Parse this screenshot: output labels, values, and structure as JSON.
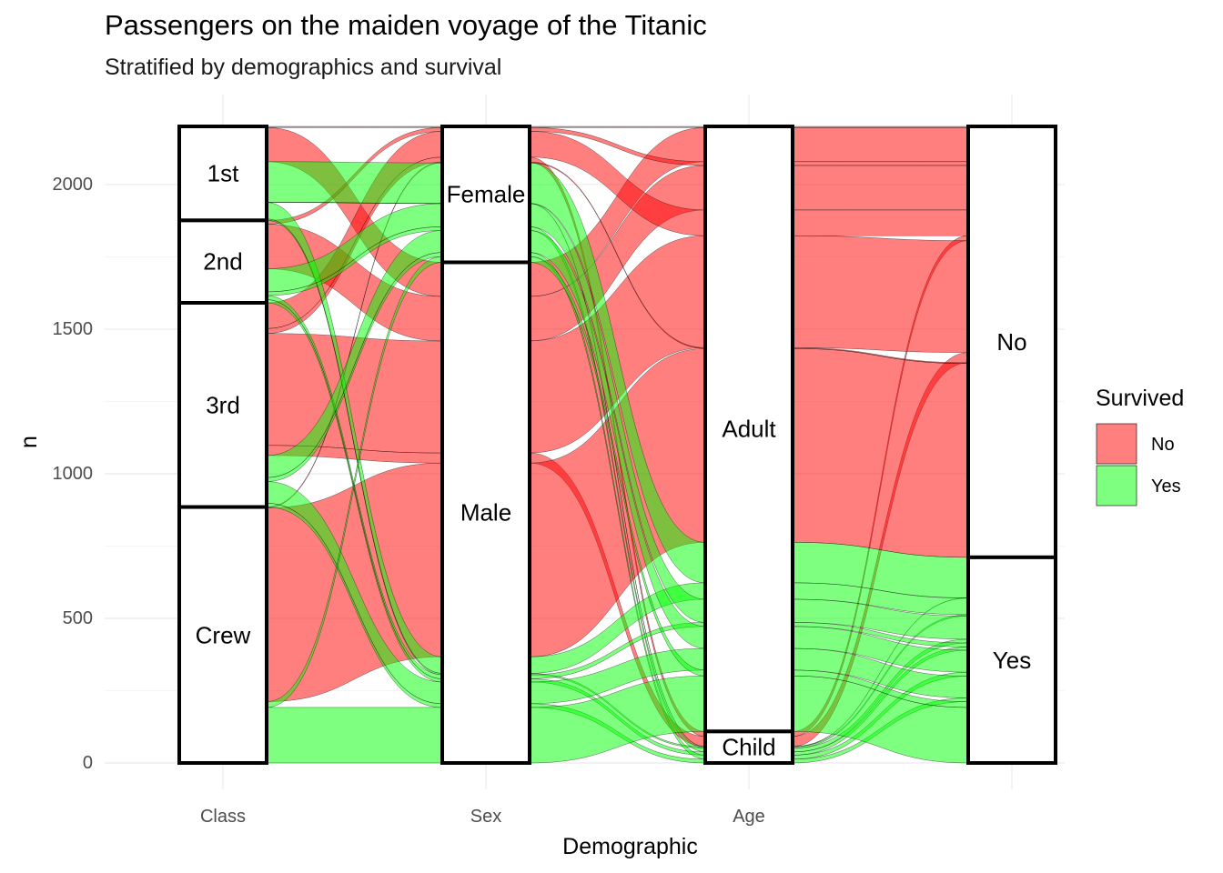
{
  "chart_data": {
    "type": "alluvial",
    "title": "Passengers on the maiden voyage of the Titanic",
    "subtitle": "Stratified by demographics and survival",
    "xlabel": "Demographic",
    "ylabel": "n",
    "ylim": [
      0,
      2201
    ],
    "y_ticks": [
      0,
      500,
      1000,
      1500,
      2000
    ],
    "x_tick_labels": [
      "Class",
      "Sex",
      "Age",
      ""
    ],
    "axes": [
      {
        "name": "Class",
        "strata": [
          {
            "label": "1st",
            "n": 325
          },
          {
            "label": "2nd",
            "n": 285
          },
          {
            "label": "3rd",
            "n": 706
          },
          {
            "label": "Crew",
            "n": 885
          }
        ]
      },
      {
        "name": "Sex",
        "strata": [
          {
            "label": "Female",
            "n": 470
          },
          {
            "label": "Male",
            "n": 1731
          }
        ]
      },
      {
        "name": "Age",
        "strata": [
          {
            "label": "Adult",
            "n": 2092
          },
          {
            "label": "Child",
            "n": 109
          }
        ]
      },
      {
        "name": "Survived",
        "strata": [
          {
            "label": "No",
            "n": 1490
          },
          {
            "label": "Yes",
            "n": 711
          }
        ]
      }
    ],
    "legend": {
      "title": "Survived",
      "position": "right",
      "items": [
        {
          "label": "No",
          "color": "#FF0000"
        },
        {
          "label": "Yes",
          "color": "#00FF00"
        }
      ]
    },
    "flows": [
      {
        "Class": "1st",
        "Sex": "Male",
        "Age": "Child",
        "Survived": "No",
        "n": 0
      },
      {
        "Class": "2nd",
        "Sex": "Male",
        "Age": "Child",
        "Survived": "No",
        "n": 0
      },
      {
        "Class": "3rd",
        "Sex": "Male",
        "Age": "Child",
        "Survived": "No",
        "n": 35
      },
      {
        "Class": "Crew",
        "Sex": "Male",
        "Age": "Child",
        "Survived": "No",
        "n": 0
      },
      {
        "Class": "1st",
        "Sex": "Female",
        "Age": "Child",
        "Survived": "No",
        "n": 0
      },
      {
        "Class": "2nd",
        "Sex": "Female",
        "Age": "Child",
        "Survived": "No",
        "n": 0
      },
      {
        "Class": "3rd",
        "Sex": "Female",
        "Age": "Child",
        "Survived": "No",
        "n": 17
      },
      {
        "Class": "Crew",
        "Sex": "Female",
        "Age": "Child",
        "Survived": "No",
        "n": 0
      },
      {
        "Class": "1st",
        "Sex": "Male",
        "Age": "Adult",
        "Survived": "No",
        "n": 118
      },
      {
        "Class": "2nd",
        "Sex": "Male",
        "Age": "Adult",
        "Survived": "No",
        "n": 154
      },
      {
        "Class": "3rd",
        "Sex": "Male",
        "Age": "Adult",
        "Survived": "No",
        "n": 387
      },
      {
        "Class": "Crew",
        "Sex": "Male",
        "Age": "Adult",
        "Survived": "No",
        "n": 670
      },
      {
        "Class": "1st",
        "Sex": "Female",
        "Age": "Adult",
        "Survived": "No",
        "n": 4
      },
      {
        "Class": "2nd",
        "Sex": "Female",
        "Age": "Adult",
        "Survived": "No",
        "n": 13
      },
      {
        "Class": "3rd",
        "Sex": "Female",
        "Age": "Adult",
        "Survived": "No",
        "n": 89
      },
      {
        "Class": "Crew",
        "Sex": "Female",
        "Age": "Adult",
        "Survived": "No",
        "n": 3
      },
      {
        "Class": "1st",
        "Sex": "Male",
        "Age": "Child",
        "Survived": "Yes",
        "n": 5
      },
      {
        "Class": "2nd",
        "Sex": "Male",
        "Age": "Child",
        "Survived": "Yes",
        "n": 11
      },
      {
        "Class": "3rd",
        "Sex": "Male",
        "Age": "Child",
        "Survived": "Yes",
        "n": 13
      },
      {
        "Class": "Crew",
        "Sex": "Male",
        "Age": "Child",
        "Survived": "Yes",
        "n": 0
      },
      {
        "Class": "1st",
        "Sex": "Female",
        "Age": "Child",
        "Survived": "Yes",
        "n": 1
      },
      {
        "Class": "2nd",
        "Sex": "Female",
        "Age": "Child",
        "Survived": "Yes",
        "n": 13
      },
      {
        "Class": "3rd",
        "Sex": "Female",
        "Age": "Child",
        "Survived": "Yes",
        "n": 14
      },
      {
        "Class": "Crew",
        "Sex": "Female",
        "Age": "Child",
        "Survived": "Yes",
        "n": 0
      },
      {
        "Class": "1st",
        "Sex": "Male",
        "Age": "Adult",
        "Survived": "Yes",
        "n": 57
      },
      {
        "Class": "2nd",
        "Sex": "Male",
        "Age": "Adult",
        "Survived": "Yes",
        "n": 14
      },
      {
        "Class": "3rd",
        "Sex": "Male",
        "Age": "Adult",
        "Survived": "Yes",
        "n": 75
      },
      {
        "Class": "Crew",
        "Sex": "Male",
        "Age": "Adult",
        "Survived": "Yes",
        "n": 192
      },
      {
        "Class": "1st",
        "Sex": "Female",
        "Age": "Adult",
        "Survived": "Yes",
        "n": 140
      },
      {
        "Class": "2nd",
        "Sex": "Female",
        "Age": "Adult",
        "Survived": "Yes",
        "n": 80
      },
      {
        "Class": "3rd",
        "Sex": "Female",
        "Age": "Adult",
        "Survived": "Yes",
        "n": 76
      },
      {
        "Class": "Crew",
        "Sex": "Female",
        "Age": "Adult",
        "Survived": "Yes",
        "n": 20
      }
    ]
  }
}
